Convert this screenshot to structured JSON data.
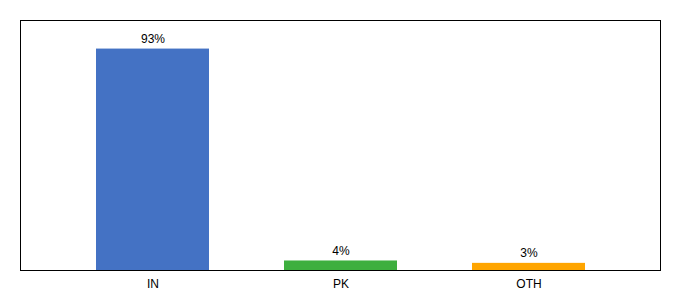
{
  "chart_data": {
    "type": "bar",
    "categories": [
      "IN",
      "PK",
      "OTH"
    ],
    "values": [
      93,
      4,
      3
    ],
    "value_labels": [
      "93%",
      "4%",
      "3%"
    ],
    "colors": [
      "#4472C4",
      "#3EAF3F",
      "#FFA500"
    ],
    "ylim": [
      0,
      105
    ],
    "data_labels": true,
    "tick_labels": "x",
    "grid": false
  }
}
